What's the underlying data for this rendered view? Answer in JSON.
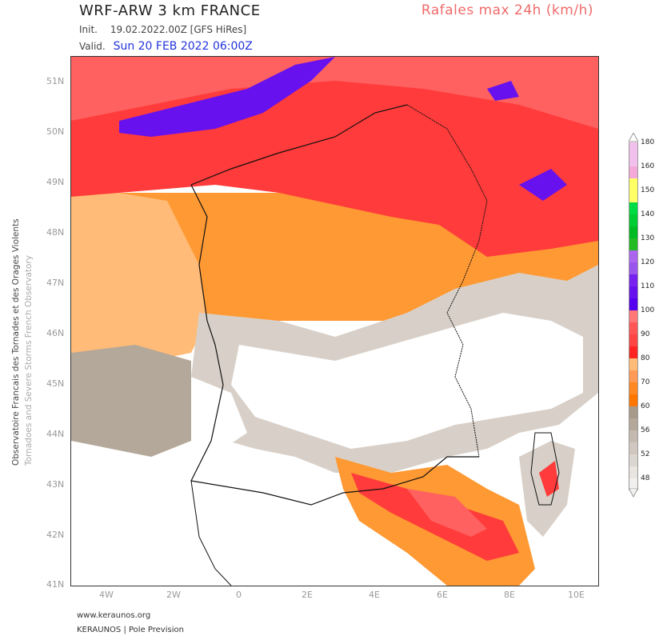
{
  "header": {
    "title": "WRF-ARW 3 km FRANCE",
    "product": "Rafales max 24h (km/h)",
    "init_label": "Init.",
    "init_value": "19.02.2022.00Z [GFS HiRes]",
    "valid_label": "Valid.",
    "valid_value": "Sun 20 FEB 2022 06:00Z"
  },
  "axes": {
    "lat": [
      "51N",
      "50N",
      "49N",
      "48N",
      "47N",
      "46N",
      "45N",
      "44N",
      "43N",
      "42N",
      "41N"
    ],
    "lon": [
      "4W",
      "2W",
      "0",
      "2E",
      "4E",
      "6E",
      "8E",
      "10E"
    ]
  },
  "side": {
    "line1": "Observatoire Francais des Tornades et des Orages Violents",
    "line2": "Tornadoes and Severe Storms French Observatory"
  },
  "footer": {
    "site": "www.keraunos.org",
    "company": "KERAUNOS | Pole Prevision"
  },
  "legend": {
    "segments": [
      {
        "color": "#f2c0ec",
        "label": "180"
      },
      {
        "color": "#f2c0ec",
        "label": ""
      },
      {
        "color": "#f5a9d8",
        "label": "160"
      },
      {
        "color": "#ffff66",
        "label": ""
      },
      {
        "color": "#ffff66",
        "label": "150"
      },
      {
        "color": "#00dd44",
        "label": ""
      },
      {
        "color": "#00cc33",
        "label": "140"
      },
      {
        "color": "#00bb22",
        "label": ""
      },
      {
        "color": "#22bb22",
        "label": "130"
      },
      {
        "color": "#aa66ee",
        "label": ""
      },
      {
        "color": "#9955ee",
        "label": "120"
      },
      {
        "color": "#7722ee",
        "label": ""
      },
      {
        "color": "#6611ee",
        "label": "110"
      },
      {
        "color": "#5500ee",
        "label": ""
      },
      {
        "color": "#ff7777",
        "label": "100"
      },
      {
        "color": "#ff5555",
        "label": ""
      },
      {
        "color": "#ff4444",
        "label": "90"
      },
      {
        "color": "#ff2222",
        "label": ""
      },
      {
        "color": "#ffbb77",
        "label": "80"
      },
      {
        "color": "#ff9955",
        "label": ""
      },
      {
        "color": "#ff8822",
        "label": "70"
      },
      {
        "color": "#ff7700",
        "label": ""
      },
      {
        "color": "#a89a8a",
        "label": "60"
      },
      {
        "color": "#b4a89a",
        "label": ""
      },
      {
        "color": "#c4bab0",
        "label": "56"
      },
      {
        "color": "#d0c8c0",
        "label": ""
      },
      {
        "color": "#dcd6d0",
        "label": "52"
      },
      {
        "color": "#e8e4e0",
        "label": ""
      },
      {
        "color": "#f2f0ee",
        "label": "48"
      }
    ]
  },
  "colors": {
    "red": "#ff3b3b",
    "light_red": "#ff6060",
    "purple": "#6611ee",
    "orange": "#ff9933",
    "light_orange": "#ffbb77",
    "grey": "#a89a8a",
    "light_grey": "#d8d0c8"
  }
}
